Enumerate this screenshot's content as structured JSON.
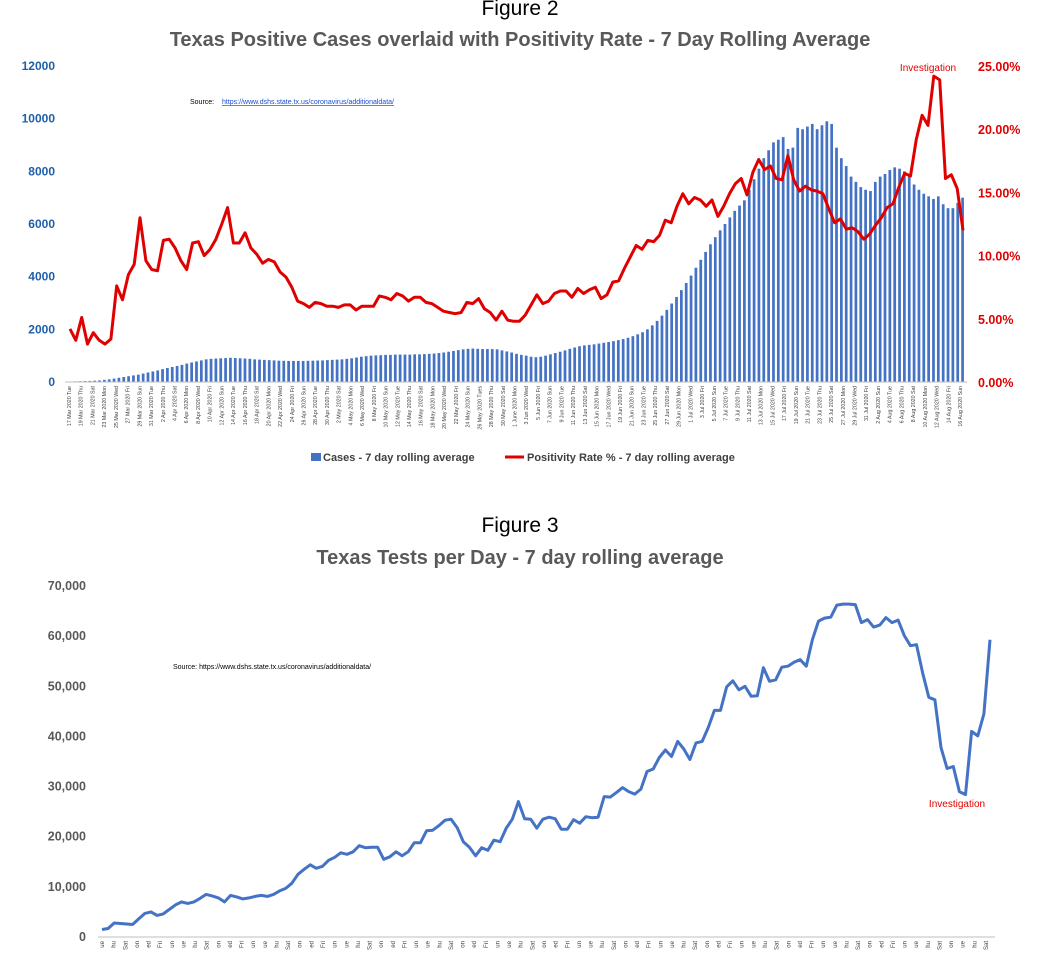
{
  "figure2": {
    "figure_label": "Figure 2",
    "source_label": "Source:",
    "source_url": "https://www.dshs.state.tx.us/coronavirus/additionaldata/",
    "annotation": "Investigation",
    "y_left_ticks": [
      "0",
      "2000",
      "4000",
      "6000",
      "8000",
      "10000",
      "12000"
    ],
    "y_right_ticks": [
      "0.00%",
      "5.00%",
      "10.00%",
      "15.00%",
      "20.00%",
      "25.00%"
    ],
    "colors": {
      "bars": "#4472c4",
      "line": "#e00000",
      "left_axis": "#1f5fa8",
      "right_axis": "#e00000"
    },
    "chart_data": {
      "type": "bar",
      "title": "Texas Positive Cases overlaid with Positivity Rate - 7 Day Rolling Average",
      "start_date": "17 Mar 2020",
      "end_date": "16 Aug 2020",
      "x_tick_labels": [
        "17 Mar 2020 Tue",
        "19 Mar 2020 Thu",
        "21 Mar 2020 Sat",
        "23 Mar 2020 Mon",
        "25 Mar 2020 Wed",
        "27 Mar 2020 Fri",
        "29 Mar 2020 Sun",
        "31 Mar 2020 Tue",
        "2 Apr 2020 Thu",
        "4 Apr 2020 Sat",
        "6 Apr 2020 Mon",
        "8 Apr 2020 Wed",
        "10 Apr 2020 Fri",
        "12 Apr 2020 Sun",
        "14 Apr 2020 Tue",
        "16 Apr 2020 Thu",
        "18 Apr 2020 Sat",
        "20 Apr 2020 Mon",
        "22 Apr 2020 Wed",
        "24 Apr 2020 Fri",
        "26 Apr 2020 Sun",
        "28 Apr 2020 Tue",
        "30 Apr 2020 Thu",
        "2 May 2020 Sat",
        "4 May 2020 Mon",
        "6 May 2020 Wed",
        "8 May 2020 Fri",
        "10 May 2020 Sun",
        "12 May 2020 Tue",
        "14 May 2020 Thu",
        "16 May 2020 Sat",
        "18 May 2020 Mon",
        "20 May 2020 Wed",
        "22 May 2020 Fri",
        "24 May 2020 Sun",
        "26 May 2020 Tues",
        "28 May 2020 Thu",
        "30 May 2020 Sat",
        "1 June 2020 Mon",
        "3 Jun 2020 Wed",
        "5 Jun 2020 Fri",
        "7 Jun 2020 Sun",
        "9 Jun 2020 Tue",
        "11 Jun 2020 Thu",
        "13 Jun 2020 Sat",
        "15 Jun 2020 Mon",
        "17 Jun 2020 Wed",
        "19 Jun 2020 Fri",
        "21 Jun 2020 Sun",
        "23 Jun 2020 Tue",
        "25 Jun 2020 Thu",
        "27 Jun 2020 Sat",
        "29 Jun 2020 Mon",
        "1 Jul 2020 Wed",
        "3 Jul 2020 Fri",
        "5 Jul 2020 Sun",
        "7 Jul 2020 Tue",
        "9 Jul 2020 Thu",
        "11 Jul 2020 Sat",
        "13 Jul 2020 Mon",
        "15 Jul 2020 Wed",
        "17 Jul 2020 Fri",
        "19 Jul 2020 Sun",
        "21 Jul 2020 Tue",
        "23 Jul 2020 Thu",
        "25 Jul 2020 Sat",
        "27 Jul 2020 Mon",
        "29 Jul 2020 Wed",
        "31 Jul 2020 Fri",
        "2 Aug 2020 Sun",
        "4 Aug 2020 Tue",
        "6 Aug 2020 Thu",
        "8 Aug 2020 Sat",
        "10 Aug 2020 Mon",
        "12 Aug 2020 Wed",
        "14 Aug 2020 Fri",
        "16 Aug 2020 Sun"
      ],
      "ylim_left": [
        0,
        12000
      ],
      "ylim_right": [
        0,
        25
      ],
      "legend_position": "bottom",
      "series": [
        {
          "name": "Cases - 7 day rolling average",
          "type": "bar",
          "axis": "left",
          "values": [
            20,
            25,
            30,
            35,
            40,
            50,
            60,
            80,
            100,
            130,
            160,
            190,
            220,
            250,
            280,
            320,
            360,
            400,
            440,
            490,
            530,
            570,
            610,
            650,
            700,
            740,
            780,
            820,
            860,
            880,
            890,
            900,
            910,
            920,
            910,
            900,
            890,
            880,
            860,
            850,
            840,
            830,
            820,
            810,
            805,
            800,
            800,
            800,
            800,
            805,
            810,
            815,
            820,
            830,
            840,
            850,
            860,
            880,
            900,
            930,
            960,
            980,
            1000,
            1010,
            1020,
            1030,
            1030,
            1040,
            1040,
            1040,
            1040,
            1050,
            1050,
            1060,
            1070,
            1080,
            1100,
            1120,
            1150,
            1180,
            1210,
            1240,
            1260,
            1270,
            1260,
            1250,
            1250,
            1250,
            1240,
            1200,
            1160,
            1120,
            1070,
            1030,
            1000,
            960,
            940,
            960,
            1000,
            1050,
            1100,
            1150,
            1200,
            1260,
            1310,
            1360,
            1390,
            1410,
            1430,
            1460,
            1490,
            1520,
            1550,
            1590,
            1630,
            1680,
            1740,
            1810,
            1890,
            2000,
            2150,
            2320,
            2520,
            2740,
            2980,
            3230,
            3490,
            3760,
            4040,
            4340,
            4640,
            4940,
            5230,
            5500,
            5760,
            6000,
            6250,
            6500,
            6700,
            6900,
            7300,
            7700,
            8100,
            8500,
            8800,
            9100,
            9200,
            9300,
            8850,
            8900,
            9650,
            9600,
            9700,
            9800,
            9600,
            9750,
            9900,
            9800,
            8900,
            8500,
            8200,
            7800,
            7600,
            7400,
            7300,
            7250,
            7600,
            7800,
            7900,
            8050,
            8150,
            8100,
            8000,
            7800,
            7500,
            7300,
            7150,
            7050,
            6950,
            7050,
            6750,
            6600,
            6600,
            6800,
            7000
          ]
        },
        {
          "name": "Positivity Rate % - 7 day rolling average",
          "type": "line",
          "axis": "right",
          "values": [
            4.2,
            3.3,
            5.1,
            3.0,
            3.9,
            3.3,
            3.0,
            3.4,
            7.6,
            6.5,
            8.5,
            9.3,
            13.0,
            9.6,
            8.9,
            8.8,
            11.2,
            11.3,
            10.6,
            9.6,
            8.9,
            11.0,
            11.1,
            10.0,
            10.5,
            11.3,
            12.5,
            13.8,
            11.0,
            11.0,
            11.8,
            10.6,
            10.1,
            9.4,
            9.7,
            9.5,
            8.7,
            8.3,
            7.5,
            6.4,
            6.2,
            5.9,
            6.3,
            6.2,
            6.0,
            6.0,
            5.9,
            6.1,
            6.1,
            5.7,
            6.0,
            6.0,
            6.0,
            6.8,
            6.7,
            6.5,
            7.0,
            6.8,
            6.4,
            6.7,
            6.7,
            6.3,
            6.2,
            5.9,
            5.6,
            5.5,
            5.4,
            5.5,
            6.3,
            6.2,
            6.6,
            5.8,
            5.5,
            4.9,
            5.6,
            4.9,
            4.8,
            4.8,
            5.3,
            6.1,
            6.9,
            6.2,
            6.4,
            7.0,
            7.2,
            7.2,
            6.7,
            7.4,
            7.0,
            7.3,
            7.5,
            6.6,
            6.9,
            7.9,
            8.0,
            9.0,
            9.9,
            10.8,
            10.5,
            11.2,
            11.1,
            11.6,
            12.8,
            12.6,
            13.9,
            14.9,
            14.1,
            14.6,
            14.4,
            13.9,
            14.4,
            13.1,
            13.9,
            14.9,
            15.7,
            16.1,
            14.8,
            16.6,
            17.6,
            16.8,
            17.1,
            16.1,
            16.0,
            17.9,
            16.0,
            15.1,
            15.5,
            15.2,
            15.1,
            14.9,
            13.7,
            12.6,
            12.9,
            12.1,
            12.2,
            11.9,
            11.3,
            11.7,
            12.4,
            13.0,
            13.8,
            14.1,
            15.4,
            16.5,
            16.3,
            19.2,
            21.1,
            20.3,
            24.2,
            23.9,
            16.1,
            16.4,
            15.3,
            12.0
          ]
        }
      ]
    }
  },
  "figure3": {
    "figure_label": "Figure 3",
    "source_text": "Source:  https://www.dshs.state.tx.us/coronavirus/additionaldata/",
    "annotation": "Investigation",
    "y_ticks": [
      "0",
      "10,000",
      "20,000",
      "30,000",
      "40,000",
      "50,000",
      "60,000",
      "70,000"
    ],
    "x_tick_labels": [
      "ue",
      "hu",
      "Sat",
      "on",
      "ed",
      "Fri",
      "un",
      "ue",
      "hu",
      "Sat",
      "on",
      "ed",
      "Fri",
      "un",
      "ue",
      "hu",
      "Sat",
      "on",
      "ed",
      "Fri",
      "un",
      "ue",
      "hu",
      "Sat",
      "on",
      "ed",
      "Fri",
      "un",
      "ue",
      "hu",
      "Sat",
      "on",
      "ed",
      "Fri",
      "un",
      "ue",
      "hu",
      "Sat",
      "on",
      "ed",
      "Fri",
      "un",
      "ue",
      "hu",
      "Sat",
      "on",
      "ed",
      "Fri",
      "un",
      "ue",
      "hu",
      "Sat",
      "on",
      "ed",
      "Fri",
      "un",
      "ue",
      "hu",
      "Sat",
      "on",
      "ed",
      "Fri",
      "un",
      "ue",
      "hu",
      "Sat",
      "on",
      "ed",
      "Fri",
      "un",
      "ue",
      "hu",
      "Sat",
      "on",
      "ue",
      "hu",
      "Sat"
    ],
    "colors": {
      "line": "#4472c4",
      "axis_text": "#595959"
    },
    "chart_data": {
      "type": "line",
      "title": "Texas Tests per Day - 7 day rolling average",
      "ylim": [
        0,
        70000
      ],
      "series": [
        {
          "name": "Tests per day - 7 day rolling average",
          "values": [
            1500,
            1700,
            2800,
            2700,
            2600,
            2500,
            3600,
            4700,
            5000,
            4300,
            4600,
            5500,
            6400,
            7000,
            6700,
            7000,
            7700,
            8500,
            8200,
            7800,
            7000,
            8300,
            8000,
            7600,
            7800,
            8100,
            8300,
            8100,
            8500,
            9200,
            9700,
            10700,
            12500,
            13500,
            14400,
            13700,
            14100,
            15300,
            15900,
            16800,
            16500,
            17000,
            18200,
            17800,
            17900,
            17900,
            15500,
            16000,
            17000,
            16200,
            17000,
            18800,
            18800,
            21200,
            21300,
            22200,
            23300,
            23500,
            21800,
            19000,
            17900,
            16200,
            17800,
            17300,
            19300,
            19000,
            21700,
            23500,
            27000,
            23600,
            23500,
            21700,
            23500,
            23900,
            23600,
            21500,
            21500,
            23400,
            22700,
            24000,
            23800,
            23900,
            28000,
            27900,
            28800,
            29800,
            29000,
            28500,
            29500,
            33000,
            33500,
            35800,
            37300,
            36000,
            39000,
            37500,
            35400,
            38700,
            39000,
            41800,
            45200,
            45200,
            49900,
            51100,
            49300,
            50000,
            48000,
            48100,
            53700,
            51000,
            51300,
            53800,
            54000,
            54800,
            55300,
            54000,
            59300,
            63000,
            63600,
            63800,
            66200,
            66400,
            66400,
            66300,
            62700,
            63300,
            61800,
            62200,
            63700,
            62700,
            63200,
            60100,
            58100,
            58300,
            52700,
            47800,
            47300,
            37800,
            33600,
            34000,
            29000,
            28400,
            41000,
            40100,
            44500,
            59300
          ]
        }
      ]
    }
  }
}
